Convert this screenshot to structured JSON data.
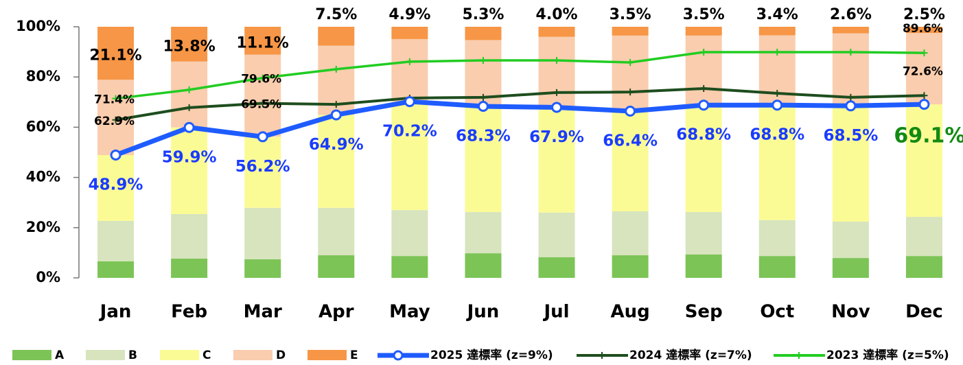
{
  "chart_data": {
    "type": "bar",
    "categories": [
      "Jan",
      "Feb",
      "Mar",
      "Apr",
      "May",
      "Jun",
      "Jul",
      "Aug",
      "Sep",
      "Oct",
      "Nov",
      "Dec"
    ],
    "ylim": [
      0,
      100
    ],
    "yticks": [
      {
        "value": 0,
        "label": "0%"
      },
      {
        "value": 20,
        "label": "20%"
      },
      {
        "value": 40,
        "label": "40%"
      },
      {
        "value": 60,
        "label": "60%"
      },
      {
        "value": 80,
        "label": "80%"
      },
      {
        "value": 100,
        "label": "100%"
      }
    ],
    "stacked": true,
    "legend": "bottom",
    "series": [
      {
        "name": "A",
        "type": "bar",
        "color": "#7cc456",
        "values": [
          6.6,
          7.7,
          7.4,
          9.0,
          8.7,
          9.8,
          8.2,
          9.0,
          9.3,
          8.7,
          7.9,
          8.7
        ]
      },
      {
        "name": "B",
        "type": "bar",
        "color": "#d7e4bd",
        "values": [
          16.1,
          17.7,
          20.5,
          18.9,
          18.3,
          16.4,
          17.8,
          17.5,
          16.9,
          14.3,
          14.5,
          15.6
        ]
      },
      {
        "name": "C",
        "type": "bar",
        "color": "#fbfb96",
        "values": [
          26.2,
          34.5,
          28.3,
          37.0,
          43.2,
          42.1,
          41.9,
          39.9,
          42.6,
          45.8,
          46.1,
          44.8
        ]
      },
      {
        "name": "D",
        "type": "bar",
        "color": "#f9cdae",
        "values": [
          30.0,
          26.3,
          32.7,
          27.6,
          24.9,
          26.4,
          28.1,
          30.1,
          27.7,
          27.8,
          28.9,
          28.4
        ]
      },
      {
        "name": "E",
        "type": "bar",
        "color": "#f79646",
        "values": [
          21.1,
          13.8,
          11.1,
          7.5,
          4.9,
          5.3,
          4.0,
          3.5,
          3.5,
          3.4,
          2.6,
          2.5
        ],
        "value_labels": [
          "21.1%",
          "13.8%",
          "11.1%",
          "7.5%",
          "4.9%",
          "5.3%",
          "4.0%",
          "3.5%",
          "3.5%",
          "3.4%",
          "2.6%",
          "2.5%"
        ]
      },
      {
        "name": "2025 達標率 (z=9%)",
        "type": "line",
        "color": "#1f5cff",
        "marker": "circle",
        "values": [
          48.9,
          59.9,
          56.2,
          64.9,
          70.2,
          68.3,
          67.9,
          66.4,
          68.8,
          68.8,
          68.5,
          69.1
        ],
        "value_labels": [
          "48.9%",
          "59.9%",
          "56.2%",
          "64.9%",
          "70.2%",
          "68.3%",
          "67.9%",
          "66.4%",
          "68.8%",
          "68.8%",
          "68.5%",
          "69.1%"
        ]
      },
      {
        "name": "2024 達標率 (z=7%)",
        "type": "line",
        "color": "#1e4d1e",
        "marker": "plus",
        "values": [
          62.9,
          67.8,
          69.5,
          69.1,
          71.6,
          71.9,
          73.8,
          74.0,
          75.4,
          73.5,
          71.9,
          72.6
        ],
        "value_labels": [
          "62.9%",
          null,
          "69.5%",
          null,
          null,
          null,
          null,
          null,
          null,
          null,
          null,
          "72.6%"
        ]
      },
      {
        "name": "2023 達標率 (z=5%)",
        "type": "line",
        "color": "#22cc22",
        "marker": "plus",
        "values": [
          71.4,
          74.9,
          79.6,
          83.1,
          86.1,
          86.6,
          86.6,
          85.8,
          89.9,
          89.9,
          89.9,
          89.6
        ],
        "value_labels": [
          "71.4%",
          null,
          "79.6%",
          null,
          null,
          null,
          null,
          null,
          null,
          null,
          null,
          "89.6%"
        ]
      }
    ]
  }
}
